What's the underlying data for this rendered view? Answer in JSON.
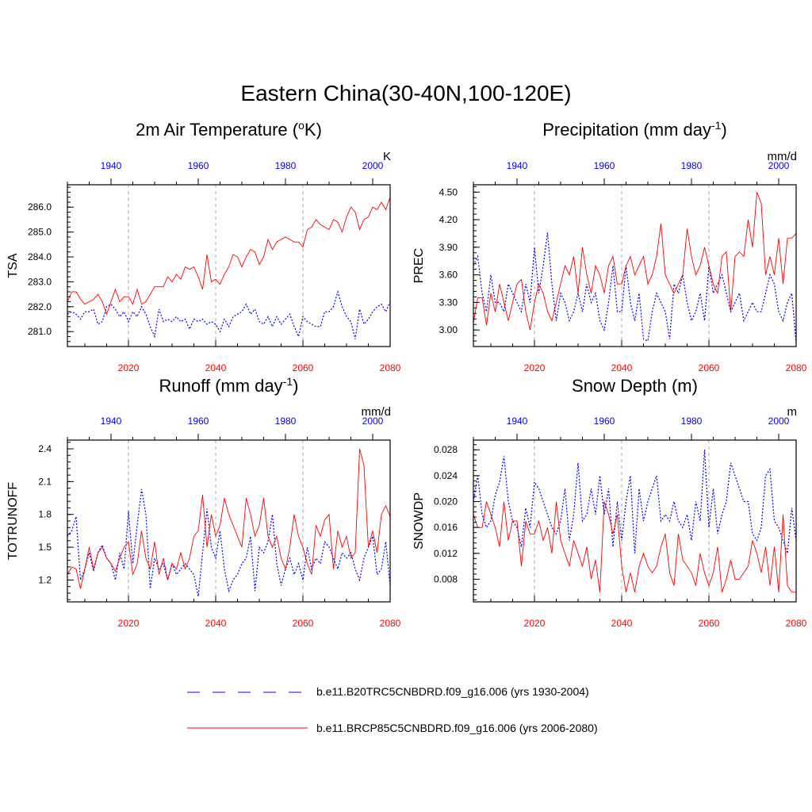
{
  "title": "Eastern China(30-40N,100-120E)",
  "colors": {
    "historical": "#0000ff",
    "future": "#ff0000",
    "grid": "#aaaaaa"
  },
  "legend": [
    {
      "label": "b.e11.B20TRC5CNBDRD.f09_g16.006 (yrs 1930-2004)",
      "series": "historical",
      "style": "dashed-blue-line"
    },
    {
      "label": "b.e11.BRCP85C5CNBDRD.f09_g16.006 (yrs 2006-2080)",
      "series": "future",
      "style": "solid-red-line"
    }
  ],
  "chart_data": [
    {
      "type": "line",
      "id": "tsa",
      "title": "2m Air Temperature (",
      "title_sup": "o",
      "title_post": "K)",
      "ylabel": "TSA",
      "units": "K",
      "x_bottom": {
        "range": [
          2006,
          2080
        ],
        "ticks": [
          "2020",
          "2040",
          "2060",
          "2080"
        ]
      },
      "x_top": {
        "range": [
          1930,
          2004
        ],
        "ticks": [
          "1940",
          "1960",
          "1980",
          "2000"
        ]
      },
      "ylim": [
        280.4,
        286.9
      ],
      "yticks": [
        "281.0",
        "282.0",
        "283.0",
        "284.0",
        "285.0",
        "286.0"
      ],
      "series": [
        {
          "name": "historical",
          "axis": "top",
          "values": [
            281.7,
            281.8,
            281.7,
            281.5,
            281.8,
            281.8,
            281.9,
            281.3,
            281.4,
            282.0,
            282.1,
            281.9,
            281.6,
            281.8,
            281.4,
            281.8,
            281.6,
            282.0,
            281.7,
            281.2,
            280.8,
            281.9,
            281.4,
            281.5,
            281.4,
            281.6,
            281.4,
            281.5,
            281.1,
            281.5,
            281.4,
            281.5,
            281.3,
            281.4,
            281.3,
            281.0,
            281.5,
            281.2,
            281.6,
            281.7,
            281.8,
            282.1,
            281.7,
            281.9,
            281.4,
            281.3,
            281.6,
            281.2,
            281.6,
            281.3,
            281.5,
            281.7,
            281.2,
            280.8,
            281.6,
            281.4,
            281.3,
            281.2,
            281.2,
            281.8,
            281.8,
            282.0,
            282.6,
            282.0,
            281.6,
            281.4,
            280.7,
            281.9,
            281.3,
            281.5,
            281.8,
            282.0,
            282.1,
            281.8,
            282.2
          ]
        },
        {
          "name": "future",
          "axis": "bottom",
          "values": [
            282.2,
            282.6,
            282.6,
            282.3,
            282.1,
            282.2,
            282.3,
            282.5,
            282.2,
            281.7,
            282.2,
            282.7,
            282.2,
            282.4,
            282.4,
            282.1,
            282.7,
            282.1,
            282.2,
            282.5,
            282.8,
            282.8,
            282.8,
            283.2,
            283.0,
            283.3,
            283.1,
            283.6,
            283.5,
            283.6,
            283.2,
            282.7,
            284.1,
            283.0,
            283.1,
            282.9,
            283.3,
            283.6,
            284.1,
            284.0,
            283.6,
            284.0,
            284.3,
            284.2,
            283.7,
            284.0,
            284.7,
            284.3,
            284.6,
            284.7,
            284.8,
            284.7,
            284.6,
            284.6,
            284.4,
            285.1,
            285.2,
            285.5,
            285.3,
            285.2,
            285.1,
            285.5,
            285.4,
            285.0,
            285.6,
            286.0,
            285.8,
            285.1,
            285.5,
            285.6,
            286.0,
            285.9,
            286.2,
            285.9,
            286.4
          ]
        }
      ]
    },
    {
      "type": "line",
      "id": "prec",
      "title": "Precipitation (mm day",
      "title_sup": "-1",
      "title_post": ")",
      "ylabel": "PREC",
      "units": "mm/d",
      "x_bottom": {
        "range": [
          2006,
          2080
        ],
        "ticks": [
          "2020",
          "2040",
          "2060",
          "2080"
        ]
      },
      "x_top": {
        "range": [
          1930,
          2004
        ],
        "ticks": [
          "1940",
          "1960",
          "1980",
          "2000"
        ]
      },
      "ylim": [
        2.82,
        4.58
      ],
      "yticks": [
        "3.00",
        "3.30",
        "3.60",
        "3.90",
        "4.20",
        "4.50"
      ],
      "series": [
        {
          "name": "historical",
          "axis": "top",
          "values": [
            3.7,
            3.8,
            3.4,
            3.2,
            3.6,
            3.3,
            3.3,
            3.2,
            3.5,
            3.4,
            3.3,
            3.2,
            3.5,
            3.3,
            3.9,
            3.4,
            3.7,
            4.06,
            3.5,
            3.1,
            3.4,
            3.3,
            3.1,
            3.2,
            3.4,
            3.2,
            3.5,
            3.3,
            3.4,
            3.1,
            3.0,
            3.3,
            3.7,
            3.2,
            3.2,
            3.7,
            3.3,
            3.1,
            3.4,
            2.9,
            2.88,
            3.2,
            3.4,
            3.3,
            3.2,
            2.9,
            3.5,
            3.4,
            3.6,
            3.3,
            3.1,
            3.2,
            3.4,
            3.1,
            3.7,
            3.4,
            3.5,
            3.6,
            3.4,
            3.2,
            3.3,
            3.4,
            3.1,
            3.2,
            3.3,
            3.2,
            3.2,
            3.4,
            3.6,
            3.5,
            3.2,
            3.1,
            3.3,
            3.4,
            2.86
          ]
        },
        {
          "name": "future",
          "axis": "bottom",
          "values": [
            3.08,
            3.35,
            3.35,
            3.05,
            3.4,
            3.2,
            3.5,
            3.3,
            3.1,
            3.3,
            3.5,
            3.55,
            3.2,
            3.0,
            3.3,
            3.5,
            3.4,
            3.2,
            3.1,
            3.3,
            3.5,
            3.7,
            3.6,
            3.8,
            3.4,
            3.9,
            3.6,
            3.4,
            3.7,
            3.6,
            3.4,
            3.7,
            3.8,
            3.5,
            3.5,
            3.7,
            3.8,
            3.6,
            3.7,
            3.8,
            3.5,
            3.6,
            3.8,
            4.16,
            3.6,
            3.5,
            3.4,
            3.5,
            3.6,
            4.1,
            3.8,
            3.6,
            3.7,
            3.9,
            3.7,
            3.5,
            3.4,
            3.8,
            3.85,
            3.2,
            3.8,
            3.85,
            3.8,
            4.2,
            3.9,
            4.5,
            4.38,
            3.6,
            3.8,
            3.6,
            4.0,
            3.5,
            4.0,
            4.0,
            4.05
          ]
        }
      ]
    },
    {
      "type": "line",
      "id": "runoff",
      "title": "Runoff (mm day",
      "title_sup": "-1",
      "title_post": ")",
      "ylabel": "TOTRUNOFF",
      "units": "mm/d",
      "x_bottom": {
        "range": [
          2006,
          2080
        ],
        "ticks": [
          "2020",
          "2040",
          "2060",
          "2080"
        ]
      },
      "x_top": {
        "range": [
          1930,
          2004
        ],
        "ticks": [
          "1940",
          "1960",
          "1980",
          "2000"
        ]
      },
      "ylim": [
        1.0,
        2.48
      ],
      "yticks": [
        "1.2",
        "1.5",
        "1.8",
        "2.1",
        "2.4"
      ],
      "series": [
        {
          "name": "historical",
          "axis": "top",
          "values": [
            1.6,
            1.65,
            1.78,
            1.2,
            1.3,
            1.45,
            1.28,
            1.45,
            1.52,
            1.4,
            1.35,
            1.2,
            1.45,
            1.3,
            1.83,
            1.35,
            1.7,
            2.03,
            1.8,
            1.12,
            1.4,
            1.3,
            1.35,
            1.2,
            1.35,
            1.25,
            1.3,
            1.35,
            1.3,
            1.25,
            1.05,
            1.45,
            1.85,
            1.5,
            1.4,
            1.65,
            1.3,
            1.1,
            1.2,
            1.25,
            1.35,
            1.4,
            1.6,
            1.1,
            1.5,
            1.45,
            1.55,
            1.8,
            1.35,
            1.15,
            1.3,
            1.4,
            1.25,
            1.35,
            1.2,
            1.5,
            1.3,
            1.4,
            1.35,
            1.55,
            1.5,
            1.4,
            1.3,
            1.45,
            1.4,
            1.45,
            1.3,
            1.2,
            1.4,
            1.5,
            1.6,
            1.25,
            1.3,
            1.55,
            1.15
          ]
        },
        {
          "name": "future",
          "axis": "bottom",
          "values": [
            1.25,
            1.32,
            1.3,
            1.12,
            1.3,
            1.5,
            1.3,
            1.45,
            1.5,
            1.4,
            1.35,
            1.28,
            1.4,
            1.5,
            1.55,
            1.25,
            1.35,
            1.65,
            1.4,
            1.3,
            1.55,
            1.25,
            1.4,
            1.2,
            1.35,
            1.3,
            1.45,
            1.3,
            1.4,
            1.6,
            1.65,
            1.98,
            1.5,
            1.8,
            1.6,
            1.7,
            1.95,
            1.8,
            1.7,
            1.6,
            1.5,
            1.95,
            1.8,
            1.6,
            1.7,
            1.95,
            1.6,
            1.5,
            1.6,
            1.4,
            1.3,
            1.5,
            1.8,
            1.6,
            1.5,
            1.35,
            1.25,
            1.7,
            1.6,
            1.75,
            1.8,
            1.3,
            1.65,
            1.5,
            1.6,
            1.4,
            1.45,
            2.4,
            2.25,
            1.5,
            1.65,
            1.45,
            1.8,
            1.88,
            1.78
          ]
        }
      ]
    },
    {
      "type": "line",
      "id": "snowdp",
      "title": "Snow Depth (m)",
      "title_sup": "",
      "title_post": "",
      "ylabel": "SNOWDP",
      "units": "m",
      "x_bottom": {
        "range": [
          2006,
          2080
        ],
        "ticks": [
          "2020",
          "2040",
          "2060",
          "2080"
        ]
      },
      "x_top": {
        "range": [
          1930,
          2004
        ],
        "ticks": [
          "1940",
          "1960",
          "1980",
          "2000"
        ]
      },
      "ylim": [
        0.0045,
        0.0295
      ],
      "yticks": [
        "0.008",
        "0.012",
        "0.016",
        "0.020",
        "0.024",
        "0.028"
      ],
      "series": [
        {
          "name": "historical",
          "axis": "top",
          "values": [
            0.02,
            0.024,
            0.018,
            0.016,
            0.017,
            0.021,
            0.023,
            0.027,
            0.02,
            0.017,
            0.016,
            0.013,
            0.019,
            0.016,
            0.023,
            0.022,
            0.02,
            0.018,
            0.016,
            0.015,
            0.017,
            0.022,
            0.014,
            0.018,
            0.026,
            0.017,
            0.018,
            0.022,
            0.018,
            0.024,
            0.018,
            0.022,
            0.013,
            0.02,
            0.014,
            0.02,
            0.024,
            0.012,
            0.022,
            0.017,
            0.02,
            0.022,
            0.024,
            0.017,
            0.018,
            0.017,
            0.02,
            0.017,
            0.016,
            0.018,
            0.014,
            0.02,
            0.017,
            0.028,
            0.016,
            0.022,
            0.015,
            0.018,
            0.02,
            0.026,
            0.024,
            0.022,
            0.02,
            0.02,
            0.015,
            0.014,
            0.016,
            0.024,
            0.025,
            0.017,
            0.016,
            0.014,
            0.012,
            0.019,
            0.014
          ]
        },
        {
          "name": "future",
          "axis": "bottom",
          "values": [
            0.018,
            0.016,
            0.016,
            0.02,
            0.018,
            0.016,
            0.013,
            0.02,
            0.014,
            0.017,
            0.017,
            0.01,
            0.017,
            0.015,
            0.015,
            0.017,
            0.014,
            0.016,
            0.012,
            0.02,
            0.014,
            0.012,
            0.01,
            0.014,
            0.012,
            0.01,
            0.013,
            0.008,
            0.011,
            0.006,
            0.02,
            0.018,
            0.015,
            0.018,
            0.01,
            0.006,
            0.009,
            0.006,
            0.01,
            0.012,
            0.01,
            0.009,
            0.01,
            0.013,
            0.015,
            0.009,
            0.007,
            0.015,
            0.011,
            0.01,
            0.009,
            0.007,
            0.012,
            0.009,
            0.007,
            0.009,
            0.013,
            0.006,
            0.008,
            0.011,
            0.008,
            0.008,
            0.009,
            0.01,
            0.014,
            0.012,
            0.009,
            0.013,
            0.007,
            0.013,
            0.006,
            0.018,
            0.007,
            0.006,
            0.006
          ]
        }
      ]
    }
  ]
}
